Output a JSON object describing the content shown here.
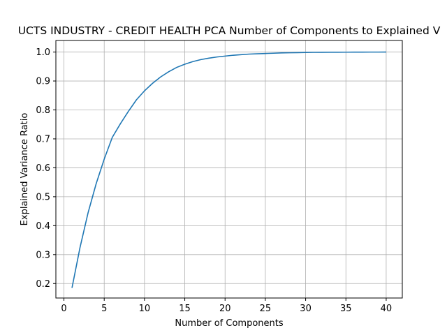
{
  "chart_data": {
    "type": "line",
    "title": "UCTS INDUSTRY - CREDIT HEALTH PCA Number of Components to Explained V",
    "xlabel": "Number of Components",
    "ylabel": "Explained Variance Ratio",
    "xlim": [
      -1,
      42
    ],
    "ylim": [
      0.15,
      1.04
    ],
    "xticks": [
      0,
      5,
      10,
      15,
      20,
      25,
      30,
      35,
      40
    ],
    "yticks": [
      0.2,
      0.3,
      0.4,
      0.5,
      0.6,
      0.7,
      0.8,
      0.9,
      1.0
    ],
    "xtick_labels": [
      "0",
      "5",
      "10",
      "15",
      "20",
      "25",
      "30",
      "35",
      "40"
    ],
    "ytick_labels": [
      "0.2",
      "0.3",
      "0.4",
      "0.5",
      "0.6",
      "0.7",
      "0.8",
      "0.9",
      "1.0"
    ],
    "grid": true,
    "series": [
      {
        "color": "#1f77b4",
        "x": [
          1,
          2,
          3,
          4,
          5,
          6,
          7,
          8,
          9,
          10,
          11,
          12,
          13,
          14,
          15,
          16,
          17,
          18,
          19,
          20,
          21,
          22,
          23,
          24,
          25,
          26,
          27,
          28,
          29,
          30,
          31,
          32,
          33,
          34,
          35,
          36,
          37,
          38,
          39,
          40
        ],
        "y": [
          0.185,
          0.325,
          0.445,
          0.545,
          0.63,
          0.705,
          0.752,
          0.795,
          0.835,
          0.866,
          0.892,
          0.914,
          0.932,
          0.947,
          0.958,
          0.967,
          0.974,
          0.979,
          0.983,
          0.986,
          0.989,
          0.991,
          0.993,
          0.994,
          0.995,
          0.996,
          0.997,
          0.9975,
          0.998,
          0.9985,
          0.999,
          0.9992,
          0.9994,
          0.9995,
          0.9996,
          0.9997,
          0.9998,
          0.9999,
          0.9999,
          1.0
        ]
      }
    ]
  }
}
